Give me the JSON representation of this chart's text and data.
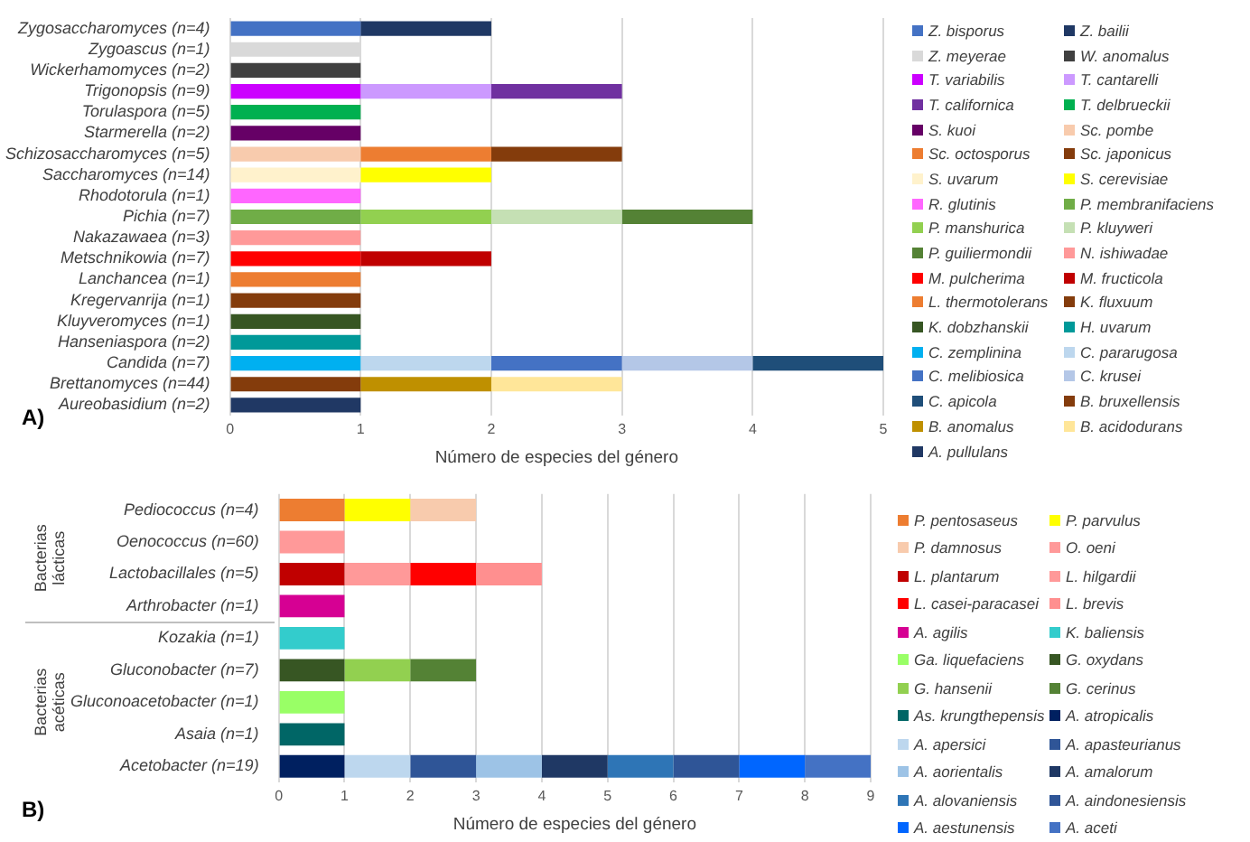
{
  "chart_data": [
    {
      "type": "bar",
      "title": "A)",
      "orientation": "horizontal",
      "stacked": true,
      "grid": "x",
      "legend": "right",
      "xlabel": "Número de especies del género",
      "xlim": [
        0,
        5
      ],
      "xticks": [
        0,
        1,
        2,
        3,
        4,
        5
      ],
      "categories": [
        "Zygosaccharomyces (n=4)",
        "Zygoascus (n=1)",
        "Wickerhamomyces (n=2)",
        "Trigonopsis (n=9)",
        "Torulaspora (n=5)",
        "Starmerella (n=2)",
        "Schizosaccharomyces (n=5)",
        "Saccharomyces (n=14)",
        "Rhodotorula (n=1)",
        "Pichia (n=7)",
        "Nakazawaea (n=3)",
        "Metschnikowia (n=7)",
        "Lanchancea (n=1)",
        "Kregervanrija (n=1)",
        "Kluyveromyces (n=1)",
        "Hanseniaspora (n=2)",
        "Candida (n=7)",
        "Brettanomyces (n=44)",
        "Aureobasidium (n=2)"
      ],
      "series": [
        {
          "name": "Z. bisporus",
          "color": "#4472c4",
          "values": [
            1,
            null,
            null,
            null,
            null,
            null,
            null,
            null,
            null,
            null,
            null,
            null,
            null,
            null,
            null,
            null,
            null,
            null,
            null
          ]
        },
        {
          "name": "Z. bailii",
          "color": "#1f3864",
          "values": [
            1,
            null,
            null,
            null,
            null,
            null,
            null,
            null,
            null,
            null,
            null,
            null,
            null,
            null,
            null,
            null,
            null,
            null,
            null
          ]
        },
        {
          "name": "Z. meyerae",
          "color": "#d9d9d9",
          "values": [
            null,
            1,
            null,
            null,
            null,
            null,
            null,
            null,
            null,
            null,
            null,
            null,
            null,
            null,
            null,
            null,
            null,
            null,
            null
          ]
        },
        {
          "name": "W. anomalus",
          "color": "#404040",
          "values": [
            null,
            null,
            1,
            null,
            null,
            null,
            null,
            null,
            null,
            null,
            null,
            null,
            null,
            null,
            null,
            null,
            null,
            null,
            null
          ]
        },
        {
          "name": "T. variabilis",
          "color": "#cc00ff",
          "values": [
            null,
            null,
            null,
            1,
            null,
            null,
            null,
            null,
            null,
            null,
            null,
            null,
            null,
            null,
            null,
            null,
            null,
            null,
            null
          ]
        },
        {
          "name": "T. cantarelli",
          "color": "#cc99ff",
          "values": [
            null,
            null,
            null,
            1,
            null,
            null,
            null,
            null,
            null,
            null,
            null,
            null,
            null,
            null,
            null,
            null,
            null,
            null,
            null
          ]
        },
        {
          "name": "T. californica",
          "color": "#7030a0",
          "values": [
            null,
            null,
            null,
            1,
            null,
            null,
            null,
            null,
            null,
            null,
            null,
            null,
            null,
            null,
            null,
            null,
            null,
            null,
            null
          ]
        },
        {
          "name": "T. delbrueckii",
          "color": "#00b050",
          "values": [
            null,
            null,
            null,
            null,
            1,
            null,
            null,
            null,
            null,
            null,
            null,
            null,
            null,
            null,
            null,
            null,
            null,
            null,
            null
          ]
        },
        {
          "name": "S. kuoi",
          "color": "#660066",
          "values": [
            null,
            null,
            null,
            null,
            null,
            1,
            null,
            null,
            null,
            null,
            null,
            null,
            null,
            null,
            null,
            null,
            null,
            null,
            null
          ]
        },
        {
          "name": "Sc. pombe",
          "color": "#f8cbad",
          "values": [
            null,
            null,
            null,
            null,
            null,
            null,
            1,
            null,
            null,
            null,
            null,
            null,
            null,
            null,
            null,
            null,
            null,
            null,
            null
          ]
        },
        {
          "name": "Sc. octosporus",
          "color": "#ed7d31",
          "values": [
            null,
            null,
            null,
            null,
            null,
            null,
            1,
            null,
            null,
            null,
            null,
            null,
            null,
            null,
            null,
            null,
            null,
            null,
            null
          ]
        },
        {
          "name": "Sc. japonicus",
          "color": "#843c0c",
          "values": [
            null,
            null,
            null,
            null,
            null,
            null,
            1,
            null,
            null,
            null,
            null,
            null,
            null,
            null,
            null,
            null,
            null,
            null,
            null
          ]
        },
        {
          "name": "S. uvarum",
          "color": "#fff2cc",
          "values": [
            null,
            null,
            null,
            null,
            null,
            null,
            null,
            1,
            null,
            null,
            null,
            null,
            null,
            null,
            null,
            null,
            null,
            null,
            null
          ]
        },
        {
          "name": "S. cerevisiae",
          "color": "#ffff00",
          "values": [
            null,
            null,
            null,
            null,
            null,
            null,
            null,
            1,
            null,
            null,
            null,
            null,
            null,
            null,
            null,
            null,
            null,
            null,
            null
          ]
        },
        {
          "name": "R. glutinis",
          "color": "#ff66ff",
          "values": [
            null,
            null,
            null,
            null,
            null,
            null,
            null,
            null,
            1,
            null,
            null,
            null,
            null,
            null,
            null,
            null,
            null,
            null,
            null
          ]
        },
        {
          "name": "P. membranifaciens",
          "color": "#70ad47",
          "values": [
            null,
            null,
            null,
            null,
            null,
            null,
            null,
            null,
            null,
            1,
            null,
            null,
            null,
            null,
            null,
            null,
            null,
            null,
            null
          ]
        },
        {
          "name": "P. manshurica",
          "color": "#92d050",
          "values": [
            null,
            null,
            null,
            null,
            null,
            null,
            null,
            null,
            null,
            1,
            null,
            null,
            null,
            null,
            null,
            null,
            null,
            null,
            null
          ]
        },
        {
          "name": "P. kluyweri",
          "color": "#c5e0b4",
          "values": [
            null,
            null,
            null,
            null,
            null,
            null,
            null,
            null,
            null,
            1,
            null,
            null,
            null,
            null,
            null,
            null,
            null,
            null,
            null
          ]
        },
        {
          "name": "P. guiliermondii",
          "color": "#548235",
          "values": [
            null,
            null,
            null,
            null,
            null,
            null,
            null,
            null,
            null,
            1,
            null,
            null,
            null,
            null,
            null,
            null,
            null,
            null,
            null
          ]
        },
        {
          "name": "N. ishiwadae",
          "color": "#ff9999",
          "values": [
            null,
            null,
            null,
            null,
            null,
            null,
            null,
            null,
            null,
            null,
            1,
            null,
            null,
            null,
            null,
            null,
            null,
            null,
            null
          ]
        },
        {
          "name": "M. pulcherima",
          "color": "#ff0000",
          "values": [
            null,
            null,
            null,
            null,
            null,
            null,
            null,
            null,
            null,
            null,
            null,
            1,
            null,
            null,
            null,
            null,
            null,
            null,
            null
          ]
        },
        {
          "name": "M. fructicola",
          "color": "#c00000",
          "values": [
            null,
            null,
            null,
            null,
            null,
            null,
            null,
            null,
            null,
            null,
            null,
            1,
            null,
            null,
            null,
            null,
            null,
            null,
            null
          ]
        },
        {
          "name": "L. thermotolerans",
          "color": "#ed7d31",
          "values": [
            null,
            null,
            null,
            null,
            null,
            null,
            null,
            null,
            null,
            null,
            null,
            null,
            1,
            null,
            null,
            null,
            null,
            null,
            null
          ]
        },
        {
          "name": "K. fluxuum",
          "color": "#843c0c",
          "values": [
            null,
            null,
            null,
            null,
            null,
            null,
            null,
            null,
            null,
            null,
            null,
            null,
            null,
            1,
            null,
            null,
            null,
            null,
            null
          ]
        },
        {
          "name": "K. dobzhanskii",
          "color": "#375623",
          "values": [
            null,
            null,
            null,
            null,
            null,
            null,
            null,
            null,
            null,
            null,
            null,
            null,
            null,
            null,
            1,
            null,
            null,
            null,
            null
          ]
        },
        {
          "name": "H. uvarum",
          "color": "#009999",
          "values": [
            null,
            null,
            null,
            null,
            null,
            null,
            null,
            null,
            null,
            null,
            null,
            null,
            null,
            null,
            null,
            1,
            null,
            null,
            null
          ]
        },
        {
          "name": "C. zemplinina",
          "color": "#00b0f0",
          "values": [
            null,
            null,
            null,
            null,
            null,
            null,
            null,
            null,
            null,
            null,
            null,
            null,
            null,
            null,
            null,
            null,
            1,
            null,
            null
          ]
        },
        {
          "name": "C. pararugosa",
          "color": "#bdd7ee",
          "values": [
            null,
            null,
            null,
            null,
            null,
            null,
            null,
            null,
            null,
            null,
            null,
            null,
            null,
            null,
            null,
            null,
            1,
            null,
            null
          ]
        },
        {
          "name": "C. melibiosica",
          "color": "#4472c4",
          "values": [
            null,
            null,
            null,
            null,
            null,
            null,
            null,
            null,
            null,
            null,
            null,
            null,
            null,
            null,
            null,
            null,
            1,
            null,
            null
          ]
        },
        {
          "name": "C. krusei",
          "color": "#b4c7e7",
          "values": [
            null,
            null,
            null,
            null,
            null,
            null,
            null,
            null,
            null,
            null,
            null,
            null,
            null,
            null,
            null,
            null,
            1,
            null,
            null
          ]
        },
        {
          "name": "C. apicola",
          "color": "#1f4e79",
          "values": [
            null,
            null,
            null,
            null,
            null,
            null,
            null,
            null,
            null,
            null,
            null,
            null,
            null,
            null,
            null,
            null,
            1,
            null,
            null
          ]
        },
        {
          "name": "B. bruxellensis",
          "color": "#843c0c",
          "values": [
            null,
            null,
            null,
            null,
            null,
            null,
            null,
            null,
            null,
            null,
            null,
            null,
            null,
            null,
            null,
            null,
            null,
            1,
            null
          ]
        },
        {
          "name": "B. anomalus",
          "color": "#bf9000",
          "values": [
            null,
            null,
            null,
            null,
            null,
            null,
            null,
            null,
            null,
            null,
            null,
            null,
            null,
            null,
            null,
            null,
            null,
            1,
            null
          ]
        },
        {
          "name": "B. acidodurans",
          "color": "#ffe699",
          "values": [
            null,
            null,
            null,
            null,
            null,
            null,
            null,
            null,
            null,
            null,
            null,
            null,
            null,
            null,
            null,
            null,
            null,
            1,
            null
          ]
        },
        {
          "name": "A. pullulans",
          "color": "#203864",
          "values": [
            null,
            null,
            null,
            null,
            null,
            null,
            null,
            null,
            null,
            null,
            null,
            null,
            null,
            null,
            null,
            null,
            null,
            null,
            1
          ]
        }
      ]
    },
    {
      "type": "bar",
      "title": "B)",
      "orientation": "horizontal",
      "stacked": true,
      "grid": "x",
      "legend": "right",
      "xlabel": "Número de especies del género",
      "xlim": [
        0,
        9
      ],
      "xticks": [
        0,
        1,
        2,
        3,
        4,
        5,
        6,
        7,
        8,
        9
      ],
      "annotations": [
        "Bacterias lácticas",
        "Bacterias acéticas"
      ],
      "categories": [
        "Pediococcus (n=4)",
        "Oenococcus (n=60)",
        "Lactobacillales (n=5)",
        "Arthrobacter (n=1)",
        "Kozakia (n=1)",
        "Gluconobacter (n=7)",
        "Gluconoacetobacter (n=1)",
        "Asaia (n=1)",
        "Acetobacter (n=19)"
      ],
      "series": [
        {
          "name": "P. pentosaseus",
          "color": "#ed7d31",
          "values": [
            1,
            null,
            null,
            null,
            null,
            null,
            null,
            null,
            null
          ]
        },
        {
          "name": "P. parvulus",
          "color": "#ffff00",
          "values": [
            1,
            null,
            null,
            null,
            null,
            null,
            null,
            null,
            null
          ]
        },
        {
          "name": "P. damnosus",
          "color": "#f8cbad",
          "values": [
            1,
            null,
            null,
            null,
            null,
            null,
            null,
            null,
            null
          ]
        },
        {
          "name": "O. oeni",
          "color": "#ff9999",
          "values": [
            null,
            1,
            null,
            null,
            null,
            null,
            null,
            null,
            null
          ]
        },
        {
          "name": "L. plantarum",
          "color": "#c00000",
          "values": [
            null,
            null,
            1,
            null,
            null,
            null,
            null,
            null,
            null
          ]
        },
        {
          "name": "L. hilgardii",
          "color": "#ff9999",
          "values": [
            null,
            null,
            1,
            null,
            null,
            null,
            null,
            null,
            null
          ]
        },
        {
          "name": "L. casei-paracasei",
          "color": "#ff0000",
          "values": [
            null,
            null,
            1,
            null,
            null,
            null,
            null,
            null,
            null
          ]
        },
        {
          "name": "L. brevis",
          "color": "#ff8f8f",
          "values": [
            null,
            null,
            1,
            null,
            null,
            null,
            null,
            null,
            null
          ]
        },
        {
          "name": "A. agilis",
          "color": "#d60093",
          "values": [
            null,
            null,
            null,
            1,
            null,
            null,
            null,
            null,
            null
          ]
        },
        {
          "name": "K. baliensis",
          "color": "#33cccc",
          "values": [
            null,
            null,
            null,
            null,
            1,
            null,
            null,
            null,
            null
          ]
        },
        {
          "name": "Ga. liquefaciens",
          "color": "#99ff66",
          "values": [
            null,
            null,
            null,
            null,
            null,
            null,
            1,
            null,
            null
          ]
        },
        {
          "name": "G. oxydans",
          "color": "#375623",
          "values": [
            null,
            null,
            null,
            null,
            null,
            1,
            null,
            null,
            null
          ]
        },
        {
          "name": "G. hansenii",
          "color": "#92d050",
          "values": [
            null,
            null,
            null,
            null,
            null,
            1,
            null,
            null,
            null
          ]
        },
        {
          "name": "G. cerinus",
          "color": "#548235",
          "values": [
            null,
            null,
            null,
            null,
            null,
            1,
            null,
            null,
            null
          ]
        },
        {
          "name": "As. krungthepensis",
          "color": "#006666",
          "values": [
            null,
            null,
            null,
            null,
            null,
            null,
            null,
            1,
            null
          ]
        },
        {
          "name": "A. atropicalis",
          "color": "#002060",
          "values": [
            null,
            null,
            null,
            null,
            null,
            null,
            null,
            null,
            1
          ]
        },
        {
          "name": "A. apersici",
          "color": "#bdd7ee",
          "values": [
            null,
            null,
            null,
            null,
            null,
            null,
            null,
            null,
            1
          ]
        },
        {
          "name": "A. apasteurianus",
          "color": "#2f5597",
          "values": [
            null,
            null,
            null,
            null,
            null,
            null,
            null,
            null,
            1
          ]
        },
        {
          "name": "A. aorientalis",
          "color": "#9dc3e6",
          "values": [
            null,
            null,
            null,
            null,
            null,
            null,
            null,
            null,
            1
          ]
        },
        {
          "name": "A. amalorum",
          "color": "#1f3864",
          "values": [
            null,
            null,
            null,
            null,
            null,
            null,
            null,
            null,
            1
          ]
        },
        {
          "name": "A. alovaniensis",
          "color": "#2e75b6",
          "values": [
            null,
            null,
            null,
            null,
            null,
            null,
            null,
            null,
            1
          ]
        },
        {
          "name": "A. aindonesiensis",
          "color": "#2f5597",
          "values": [
            null,
            null,
            null,
            null,
            null,
            null,
            null,
            null,
            1
          ]
        },
        {
          "name": "A. aestunensis",
          "color": "#0066ff",
          "values": [
            null,
            null,
            null,
            null,
            null,
            null,
            null,
            null,
            1
          ]
        },
        {
          "name": "A. aceti",
          "color": "#4472c4",
          "values": [
            null,
            null,
            null,
            null,
            null,
            null,
            null,
            null,
            1
          ]
        }
      ]
    }
  ]
}
